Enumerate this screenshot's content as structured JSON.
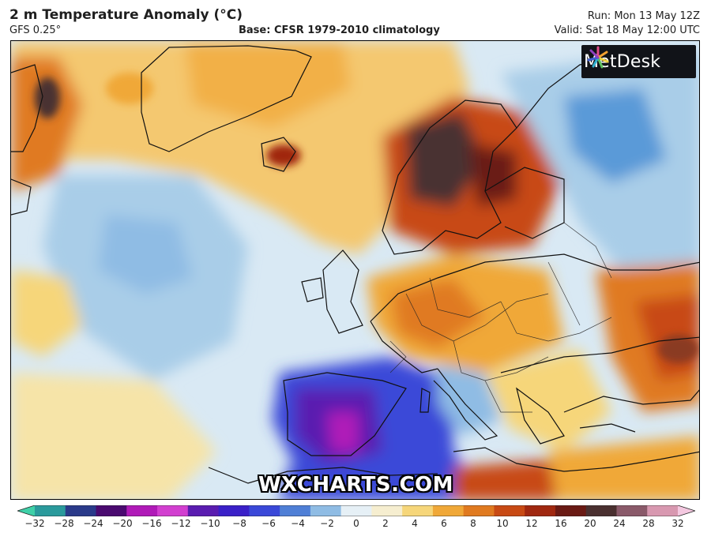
{
  "header": {
    "title": "2 m Temperature Anomaly (°C)",
    "model": "GFS 0.25°",
    "base": "Base: CFSR 1979-2010 climatology",
    "run": "Run: Mon 13 May 12Z",
    "valid": "Valid: Sat 18 May 12:00 UTC"
  },
  "logo": {
    "text": "MetDesk",
    "icon": "starburst-logo-icon"
  },
  "watermark": "WXCHARTS.COM",
  "colorbar": {
    "ticks": [
      "−32",
      "−28",
      "−24",
      "−20",
      "−16",
      "−12",
      "−10",
      "−8",
      "−6",
      "−4",
      "−2",
      "0",
      "2",
      "4",
      "6",
      "8",
      "10",
      "12",
      "16",
      "20",
      "24",
      "28",
      "32"
    ],
    "colors": [
      "#3fd0a8",
      "#2a9a9c",
      "#2a3a8a",
      "#4a0a70",
      "#b01ab8",
      "#d23fd0",
      "#5a1cb0",
      "#3a20c8",
      "#3a48d8",
      "#4f7fd6",
      "#8fbce4",
      "#e6f0f6",
      "#f6eed0",
      "#f6d67a",
      "#f0a838",
      "#e07a20",
      "#c84a14",
      "#a02810",
      "#6a1a14",
      "#4a3030",
      "#8a5a6a",
      "#d898b0",
      "#f4c8e0"
    ]
  },
  "palette": {
    "warm_light": "#f6dc8a",
    "warm": "#f0a838",
    "hot": "#c84a14",
    "very_hot": "#4a3030",
    "cool_light": "#e6f0f6",
    "cool": "#8fbce4",
    "cold": "#3a48d8",
    "very_cold": "#4a0a70"
  }
}
